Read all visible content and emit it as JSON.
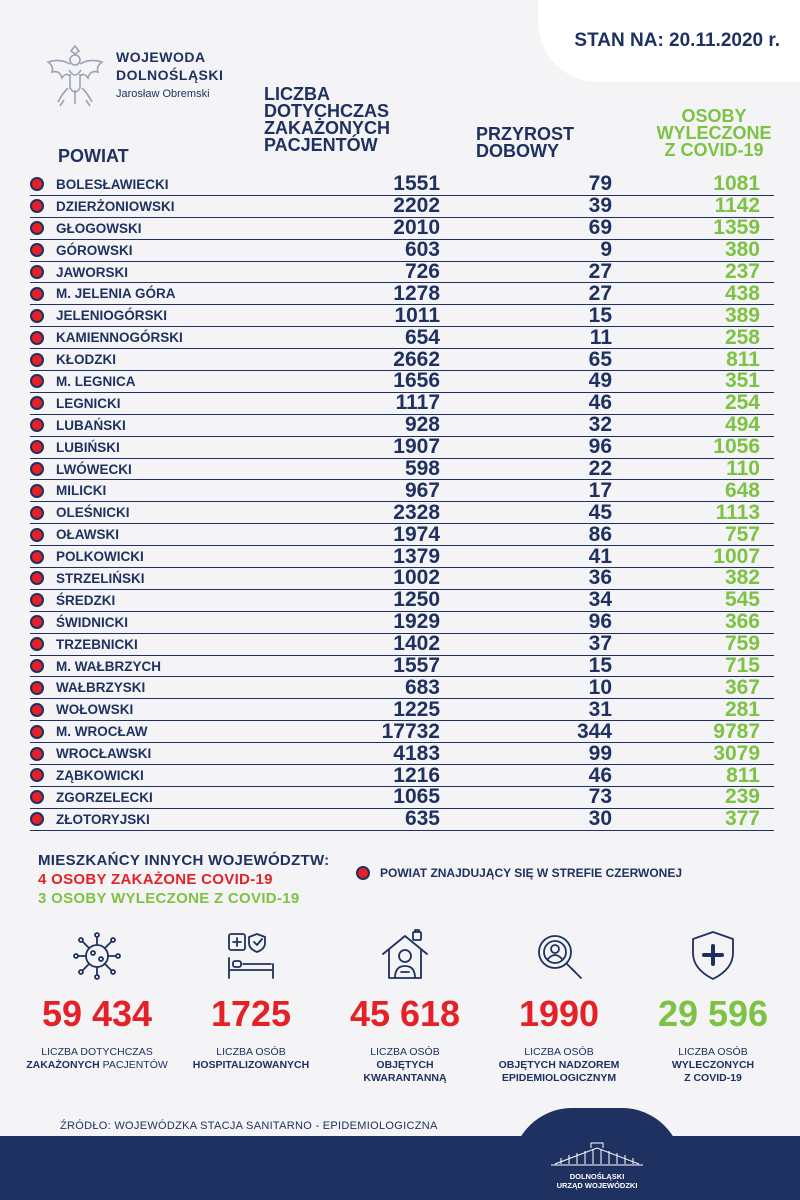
{
  "header": {
    "date_label": "STAN NA: 20.11.2020 r.",
    "org_title_1": "WOJEWODA",
    "org_title_2": "DOLNOŚLĄSKI",
    "org_person": "Jarosław Obremski"
  },
  "columns": {
    "powiat": "POWIAT",
    "liczba": [
      "LICZBA",
      "DOTYCHCZAS",
      "ZAKAŻONYCH",
      "PACJENTÓW"
    ],
    "przyrost": [
      "PRZYROST",
      "DOBOWY"
    ],
    "osoby": [
      "OSOBY",
      "WYLECZONE",
      "Z COVID-19"
    ]
  },
  "rows": [
    {
      "name": "BOLESŁAWIECKI",
      "total": "1551",
      "daily": "79",
      "cured": "1081"
    },
    {
      "name": "DZIERŻONIOWSKI",
      "total": "2202",
      "daily": "39",
      "cured": "1142"
    },
    {
      "name": "GŁOGOWSKI",
      "total": "2010",
      "daily": "69",
      "cured": "1359"
    },
    {
      "name": "GÓROWSKI",
      "total": "603",
      "daily": "9",
      "cured": "380"
    },
    {
      "name": "JAWORSKI",
      "total": "726",
      "daily": "27",
      "cured": "237"
    },
    {
      "name": "M. JELENIA GÓRA",
      "total": "1278",
      "daily": "27",
      "cured": "438"
    },
    {
      "name": "JELENIOGÓRSKI",
      "total": "1011",
      "daily": "15",
      "cured": "389"
    },
    {
      "name": "KAMIENNOGÓRSKI",
      "total": "654",
      "daily": "11",
      "cured": "258"
    },
    {
      "name": "KŁODZKI",
      "total": "2662",
      "daily": "65",
      "cured": "811"
    },
    {
      "name": "M. LEGNICA",
      "total": "1656",
      "daily": "49",
      "cured": "351"
    },
    {
      "name": "LEGNICKI",
      "total": "1117",
      "daily": "46",
      "cured": "254"
    },
    {
      "name": "LUBAŃSKI",
      "total": "928",
      "daily": "32",
      "cured": "494"
    },
    {
      "name": "LUBIŃSKI",
      "total": "1907",
      "daily": "96",
      "cured": "1056"
    },
    {
      "name": "LWÓWECKI",
      "total": "598",
      "daily": "22",
      "cured": "110"
    },
    {
      "name": "MILICKI",
      "total": "967",
      "daily": "17",
      "cured": "648"
    },
    {
      "name": "OLEŚNICKI",
      "total": "2328",
      "daily": "45",
      "cured": "1113"
    },
    {
      "name": "OŁAWSKI",
      "total": "1974",
      "daily": "86",
      "cured": "757"
    },
    {
      "name": "POLKOWICKI",
      "total": "1379",
      "daily": "41",
      "cured": "1007"
    },
    {
      "name": "STRZELIŃSKI",
      "total": "1002",
      "daily": "36",
      "cured": "382"
    },
    {
      "name": "ŚREDZKI",
      "total": "1250",
      "daily": "34",
      "cured": "545"
    },
    {
      "name": "ŚWIDNICKI",
      "total": "1929",
      "daily": "96",
      "cured": "366"
    },
    {
      "name": "TRZEBNICKI",
      "total": "1402",
      "daily": "37",
      "cured": "759"
    },
    {
      "name": "M. WAŁBRZYCH",
      "total": "1557",
      "daily": "15",
      "cured": "715"
    },
    {
      "name": "WAŁBRZYSKI",
      "total": "683",
      "daily": "10",
      "cured": "367"
    },
    {
      "name": "WOŁOWSKI",
      "total": "1225",
      "daily": "31",
      "cured": "281"
    },
    {
      "name": "M. WROCŁAW",
      "total": "17732",
      "daily": "344",
      "cured": "9787"
    },
    {
      "name": "WROCŁAWSKI",
      "total": "4183",
      "daily": "99",
      "cured": "3079"
    },
    {
      "name": "ZĄBKOWICKI",
      "total": "1216",
      "daily": "46",
      "cured": "811"
    },
    {
      "name": "ZGORZELECKI",
      "total": "1065",
      "daily": "73",
      "cured": "239"
    },
    {
      "name": "ZŁOTORYJSKI",
      "total": "635",
      "daily": "30",
      "cured": "377"
    }
  ],
  "others": {
    "title": "MIESZKAŃCY INNYCH WOJEWÓDZTW:",
    "infected": "4 OSOBY ZAKAŻONE COVID-19",
    "cured": "3 OSOBY WYLECZONE Z COVID-19"
  },
  "legend": "POWIAT ZNAJDUJĄCY SIĘ W STREFIE CZERWONEJ",
  "stats": [
    {
      "icon": "virus-icon",
      "value": "59 434",
      "color": "#e32127",
      "line1": "LICZBA DOTYCHCZAS",
      "line2_bold": "ZAKAŻONYCH",
      "line2_rest": " PACJENTÓW",
      "line3": ""
    },
    {
      "icon": "hospital-bed-icon",
      "value": "1725",
      "color": "#e32127",
      "line1": "LICZBA OSÓB",
      "line2_bold": "HOSPITALIZOWANYCH",
      "line2_rest": "",
      "line3": ""
    },
    {
      "icon": "quarantine-icon",
      "value": "45 618",
      "color": "#e32127",
      "line1": "LICZBA OSÓB",
      "line2_bold": "OBJĘTYCH",
      "line2_rest": "",
      "line3": "KWARANTANNĄ"
    },
    {
      "icon": "magnifier-person-icon",
      "value": "1990",
      "color": "#e32127",
      "line1": "LICZBA OSÓB",
      "line2_bold": "OBJĘTYCH NADZOREM",
      "line2_rest": "",
      "line3": "EPIDEMIOLOGICZNYM"
    },
    {
      "icon": "shield-cross-icon",
      "value": "29 596",
      "color": "#7dc242",
      "line1": "LICZBA OSÓB",
      "line2_bold": "WYLECZONYCH",
      "line2_rest": "",
      "line3": "Z COVID-19"
    }
  ],
  "source": "ŹRÓDŁO: WOJEWÓDZKA STACJA SANITARNO - EPIDEMIOLOGICZNA",
  "footer": {
    "line1": "DOLNOŚLĄSKI",
    "line2": "URZĄD WOJEWÓDZKI"
  }
}
